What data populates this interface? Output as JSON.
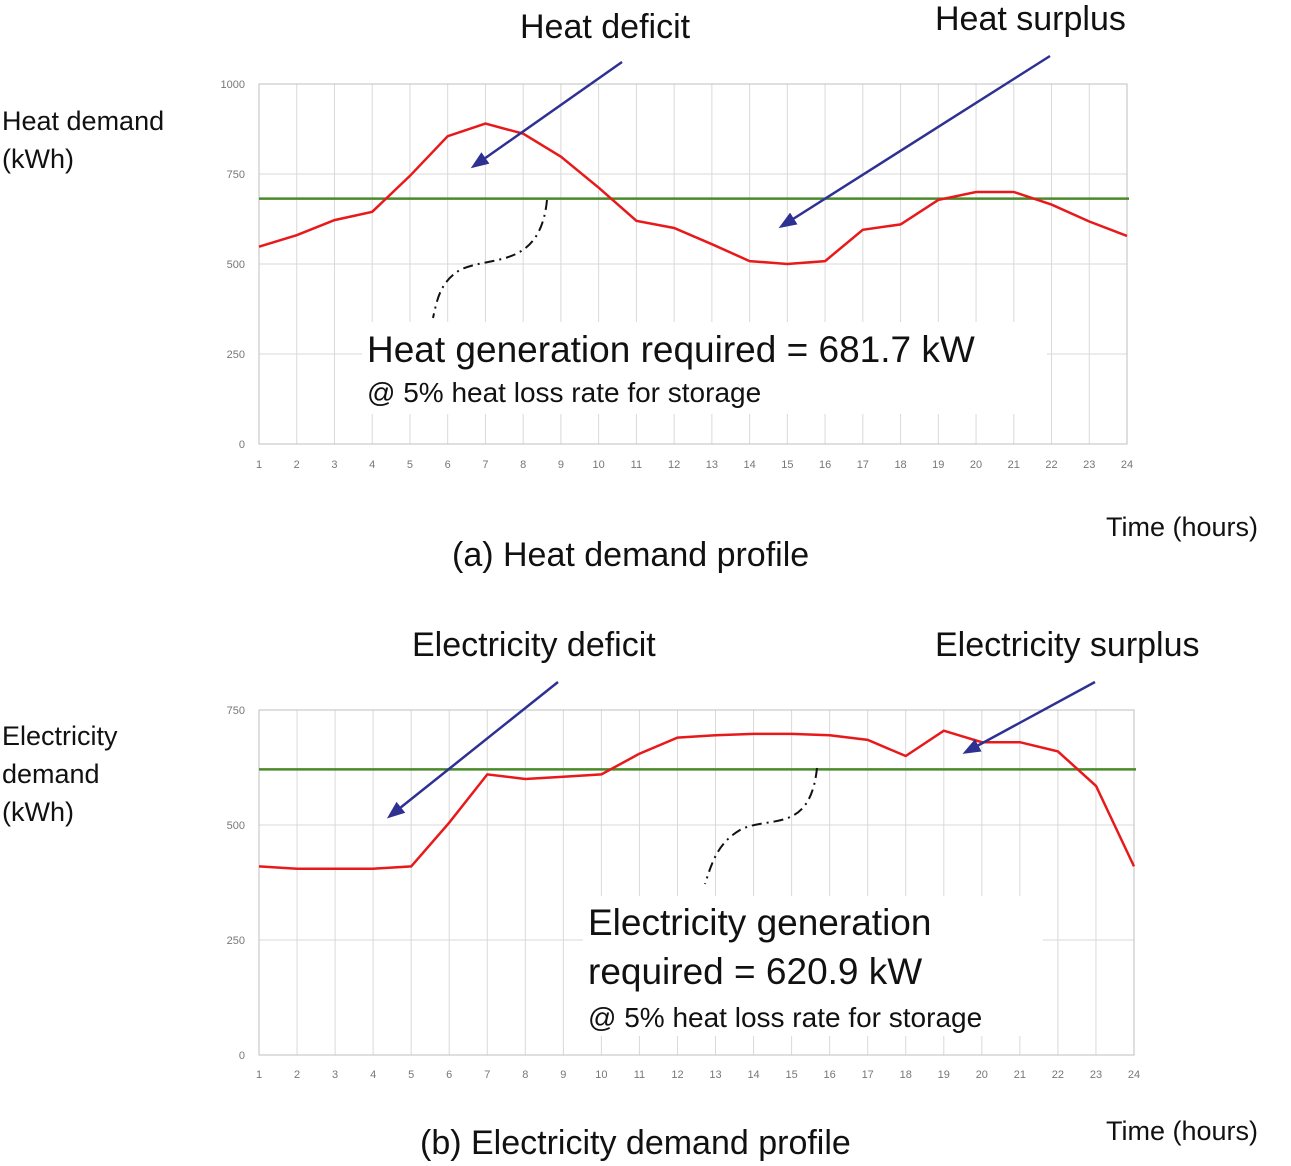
{
  "chart_data": [
    {
      "type": "line",
      "caption": "(a) Heat demand profile",
      "ylabel_line1": "Heat demand",
      "ylabel_line2": "(kWh)",
      "xlabel": "Time (hours)",
      "categories": [
        1,
        2,
        3,
        4,
        5,
        6,
        7,
        8,
        9,
        10,
        11,
        12,
        13,
        14,
        15,
        16,
        17,
        18,
        19,
        20,
        21,
        22,
        23,
        24
      ],
      "yticks": [
        0,
        250,
        500,
        750,
        1000
      ],
      "ylim": [
        0,
        1000
      ],
      "series": [
        {
          "role": "demand",
          "color": "#e8191b",
          "values": [
            548,
            580,
            622,
            645,
            745,
            855,
            890,
            862,
            798,
            712,
            620,
            600,
            555,
            508,
            500,
            508,
            595,
            610,
            678,
            700,
            700,
            665,
            618,
            578
          ]
        },
        {
          "role": "generation",
          "color": "#4a8a2a",
          "values": [
            681.7,
            681.7,
            681.7,
            681.7,
            681.7,
            681.7,
            681.7,
            681.7,
            681.7,
            681.7,
            681.7,
            681.7,
            681.7,
            681.7,
            681.7,
            681.7,
            681.7,
            681.7,
            681.7,
            681.7,
            681.7,
            681.7,
            681.7,
            681.7
          ]
        }
      ],
      "annotations": {
        "deficit": "Heat deficit",
        "surplus": "Heat surplus",
        "generation_line1": "Heat generation required = 681.7 kW",
        "generation_line2": "",
        "note": "@ 5% heat loss rate for storage"
      }
    },
    {
      "type": "line",
      "caption": "(b) Electricity demand profile",
      "ylabel_line1": "Electricity",
      "ylabel_line2": "demand",
      "ylabel_line3": "(kWh)",
      "xlabel": "Time (hours)",
      "categories": [
        1,
        2,
        3,
        4,
        5,
        6,
        7,
        8,
        9,
        10,
        11,
        12,
        13,
        14,
        15,
        16,
        17,
        18,
        19,
        20,
        21,
        22,
        23,
        24
      ],
      "yticks": [
        0,
        250,
        500,
        750
      ],
      "ylim": [
        0,
        750
      ],
      "series": [
        {
          "role": "demand",
          "color": "#e8191b",
          "values": [
            410,
            405,
            405,
            405,
            410,
            505,
            610,
            600,
            605,
            610,
            655,
            690,
            695,
            698,
            698,
            695,
            685,
            650,
            705,
            680,
            680,
            660,
            585,
            410
          ]
        },
        {
          "role": "generation",
          "color": "#4a8a2a",
          "values": [
            620.9,
            620.9,
            620.9,
            620.9,
            620.9,
            620.9,
            620.9,
            620.9,
            620.9,
            620.9,
            620.9,
            620.9,
            620.9,
            620.9,
            620.9,
            620.9,
            620.9,
            620.9,
            620.9,
            620.9,
            620.9,
            620.9,
            620.9,
            620.9
          ]
        }
      ],
      "annotations": {
        "deficit": "Electricity deficit",
        "surplus": "Electricity surplus",
        "generation_line1": "Electricity generation",
        "generation_line2": "required = 620.9 kW",
        "note": "@ 5% heat loss rate for storage"
      }
    }
  ],
  "colors": {
    "arrow": "#2e3192",
    "grid": "#d9d9d9",
    "axis": "#bfbfbf"
  }
}
